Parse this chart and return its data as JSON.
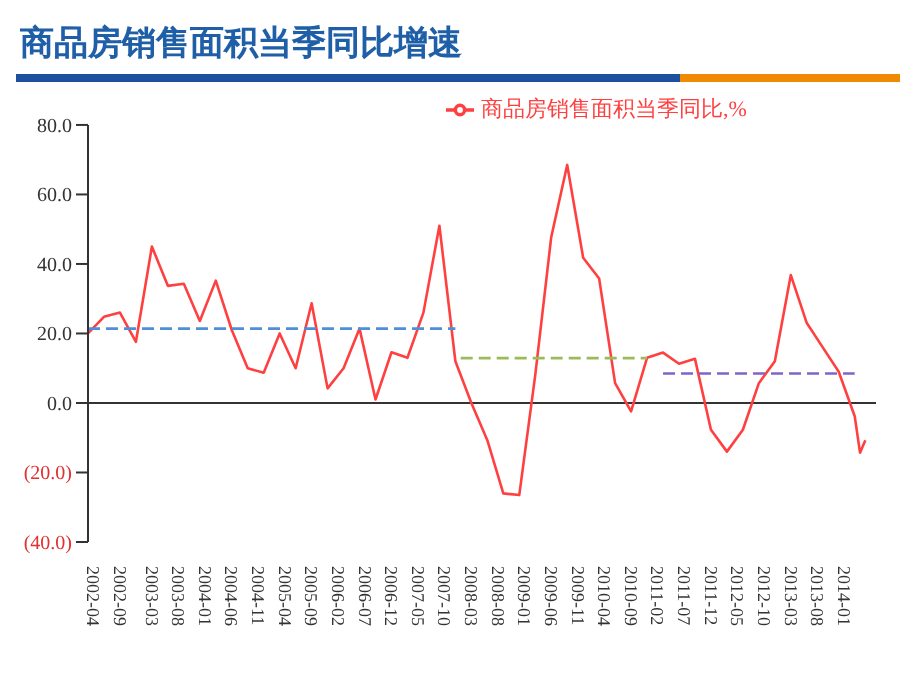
{
  "chart_data": {
    "type": "line",
    "title": "商品房销售面积当季同比增速",
    "x": [
      "2002-03",
      "2002-06",
      "2002-09",
      "2002-12",
      "2003-03",
      "2003-06",
      "2003-09",
      "2003-12",
      "2004-03",
      "2004-06",
      "2004-09",
      "2004-12",
      "2005-03",
      "2005-06",
      "2005-09",
      "2005-12",
      "2006-03",
      "2006-06",
      "2006-09",
      "2006-12",
      "2007-03",
      "2007-06",
      "2007-09",
      "2007-12",
      "2008-03",
      "2008-06",
      "2008-09",
      "2008-12",
      "2009-03",
      "2009-06",
      "2009-09",
      "2009-12",
      "2010-03",
      "2010-06",
      "2010-09",
      "2010-12",
      "2011-03",
      "2011-06",
      "2011-09",
      "2011-12",
      "2012-03",
      "2012-06",
      "2012-09",
      "2012-12",
      "2013-03",
      "2013-06",
      "2013-09",
      "2013-12",
      "2014-03",
      "2014-04",
      "2014-05"
    ],
    "series": [
      {
        "name": "商品房销售面积当季同比,%",
        "color": "#ff4040",
        "values": [
          20,
          24.8,
          26,
          17.6,
          45,
          33.7,
          34.3,
          23.6,
          35.2,
          21,
          10,
          8.7,
          20,
          10,
          28.7,
          4.2,
          10,
          21.4,
          1,
          14.6,
          13,
          26,
          51,
          12,
          0,
          -10.7,
          -26,
          -26.5,
          8,
          47.7,
          68.5,
          41.8,
          35.8,
          5.7,
          -2.4,
          13,
          14.5,
          11.3,
          12.7,
          -7.7,
          -14,
          -7.7,
          5.7,
          12,
          36.8,
          23,
          16,
          9,
          -3.8,
          -14.3,
          -10.7
        ]
      },
      {
        "color": "#4f8fd8",
        "line_style": "dashed",
        "x": [
          "2002-03",
          "2007-12"
        ],
        "values": [
          21.4,
          21.4
        ]
      },
      {
        "color": "#9bbb59",
        "line_style": "dashed",
        "x": [
          "2008-01",
          "2010-12"
        ],
        "values": [
          12.9,
          12.9
        ]
      },
      {
        "color": "#8064c8",
        "line_style": "dashed",
        "x": [
          "2011-03",
          "2014-03"
        ],
        "values": [
          8.5,
          8.5
        ]
      }
    ],
    "xlim": [
      "2002-03",
      "2014-07"
    ],
    "xticks": [
      "2002-04",
      "2002-09",
      "2003-03",
      "2003-08",
      "2004-01",
      "2004-06",
      "2004-11",
      "2005-04",
      "2005-09",
      "2006-02",
      "2006-07",
      "2006-12",
      "2007-05",
      "2007-10",
      "2008-03",
      "2008-08",
      "2009-01",
      "2009-06",
      "2009-11",
      "2010-04",
      "2010-09",
      "2011-02",
      "2011-07",
      "2011-12",
      "2012-05",
      "2012-10",
      "2013-03",
      "2013-08",
      "2014-01"
    ],
    "ylim": [
      -40,
      80
    ],
    "yticks": [
      {
        "value": -40,
        "label": "(40.0)"
      },
      {
        "value": -20,
        "label": "(20.0)"
      },
      {
        "value": 0,
        "label": "0.0"
      },
      {
        "value": 20,
        "label": "20.0"
      },
      {
        "value": 40,
        "label": "40.0"
      },
      {
        "value": 60,
        "label": "60.0"
      },
      {
        "value": 80,
        "label": "80.0"
      }
    ],
    "legend": "top",
    "marker": "none",
    "line_style": "solid"
  }
}
